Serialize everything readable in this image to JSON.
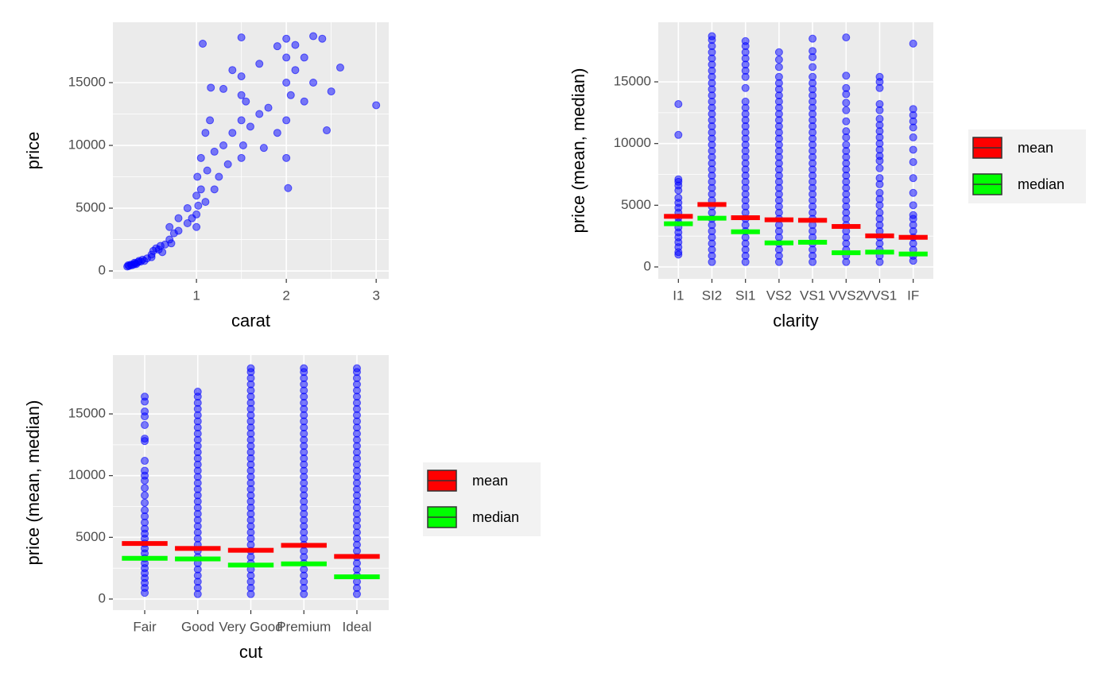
{
  "chart_data": [
    {
      "type": "scatter",
      "x_label": "carat",
      "y_label": "price",
      "color": "#0000ff",
      "x": [
        0.23,
        0.24,
        0.25,
        0.27,
        0.28,
        0.3,
        0.31,
        0.32,
        0.33,
        0.35,
        0.36,
        0.38,
        0.4,
        0.42,
        0.45,
        0.5,
        0.5,
        0.52,
        0.55,
        0.58,
        0.6,
        0.62,
        0.65,
        0.7,
        0.7,
        0.72,
        0.75,
        0.8,
        0.8,
        0.9,
        0.9,
        0.95,
        1.0,
        1.0,
        1.0,
        1.01,
        1.02,
        1.05,
        1.05,
        1.07,
        1.1,
        1.1,
        1.12,
        1.15,
        1.16,
        1.2,
        1.2,
        1.25,
        1.3,
        1.3,
        1.35,
        1.4,
        1.4,
        1.5,
        1.5,
        1.5,
        1.5,
        1.5,
        1.52,
        1.55,
        1.6,
        1.7,
        1.7,
        1.75,
        1.8,
        1.9,
        1.9,
        2.0,
        2.0,
        2.0,
        2.0,
        2.0,
        2.02,
        2.05,
        2.1,
        2.1,
        2.2,
        2.2,
        2.3,
        2.3,
        2.4,
        2.45,
        2.5,
        2.6,
        3.0
      ],
      "y": [
        350,
        450,
        400,
        500,
        450,
        500,
        650,
        600,
        550,
        700,
        800,
        750,
        900,
        800,
        1000,
        1300,
        1100,
        1600,
        1800,
        1700,
        2000,
        1500,
        2100,
        2500,
        3500,
        2200,
        3000,
        3200,
        4200,
        3800,
        5000,
        4200,
        4500,
        6000,
        3500,
        7500,
        5200,
        9000,
        6500,
        18100,
        5500,
        11000,
        8000,
        12000,
        14600,
        6500,
        9500,
        7500,
        10000,
        14500,
        8500,
        11000,
        16000,
        9000,
        12000,
        14000,
        15500,
        18600,
        10000,
        13500,
        11500,
        12500,
        16500,
        9800,
        13000,
        11000,
        17900,
        9000,
        12000,
        15000,
        17000,
        18500,
        6600,
        14000,
        16000,
        18000,
        13500,
        17000,
        15000,
        18700,
        18500,
        11200,
        14300,
        16200,
        13200
      ],
      "xlim": [
        0.07,
        3.14
      ],
      "xticks": [
        1,
        2,
        3
      ],
      "ylim": [
        -630,
        19810
      ],
      "yticks": [
        0,
        5000,
        10000,
        15000
      ]
    },
    {
      "type": "strip",
      "x_label": "clarity",
      "y_label": "price (mean, median)",
      "color": "#0000ff",
      "categories": [
        "I1",
        "SI2",
        "SI1",
        "VS2",
        "VS1",
        "VVS2",
        "VVS1",
        "IF"
      ],
      "points": [
        [
          1000,
          1200,
          1600,
          2000,
          2400,
          2800,
          3200,
          3600,
          4000,
          4400,
          4800,
          5200,
          5600,
          6200,
          6600,
          6900,
          7100,
          10700,
          13200
        ],
        [
          400,
          900,
          1400,
          1900,
          2400,
          2900,
          3400,
          3900,
          4400,
          4900,
          5400,
          5900,
          6400,
          6900,
          7400,
          7900,
          8400,
          8900,
          9400,
          9900,
          10400,
          10900,
          11400,
          11900,
          12400,
          12900,
          13400,
          13900,
          14400,
          14900,
          15400,
          15900,
          16400,
          16900,
          17400,
          17900,
          18400,
          18700
        ],
        [
          400,
          900,
          1400,
          1900,
          2400,
          2900,
          3400,
          3900,
          4400,
          4900,
          5400,
          5900,
          6400,
          6900,
          7400,
          7900,
          8400,
          8900,
          9400,
          9900,
          10400,
          10900,
          11400,
          11900,
          12400,
          12900,
          13400,
          14500,
          15400,
          15900,
          16400,
          16900,
          17400,
          17900,
          18300
        ],
        [
          400,
          900,
          1400,
          1900,
          2400,
          2900,
          3400,
          3900,
          4400,
          4900,
          5400,
          5900,
          6400,
          6900,
          7400,
          7900,
          8400,
          8900,
          9400,
          9900,
          10400,
          10900,
          11400,
          11900,
          12400,
          12900,
          13400,
          13900,
          14400,
          14900,
          15400,
          16200,
          16800,
          17400
        ],
        [
          400,
          900,
          1400,
          1900,
          2400,
          2900,
          3400,
          3900,
          4400,
          4900,
          5400,
          5900,
          6400,
          6900,
          7400,
          7900,
          8400,
          8900,
          9400,
          9900,
          10400,
          10900,
          11400,
          11900,
          12400,
          12900,
          13400,
          13900,
          14400,
          14900,
          15400,
          16200,
          17000,
          17500,
          18500
        ],
        [
          400,
          900,
          1400,
          1900,
          2400,
          2900,
          3400,
          3900,
          4400,
          4900,
          5400,
          5900,
          6400,
          6900,
          7400,
          7900,
          8400,
          8900,
          9400,
          9900,
          10500,
          11000,
          11800,
          12700,
          13300,
          14000,
          14500,
          15500,
          18600
        ],
        [
          400,
          900,
          1400,
          1900,
          2400,
          2900,
          3400,
          3900,
          4400,
          5000,
          5500,
          6000,
          6700,
          7200,
          8000,
          8600,
          9000,
          9500,
          10000,
          10500,
          11000,
          11500,
          12000,
          12700,
          13200,
          14500,
          15000,
          15400
        ],
        [
          500,
          900,
          1400,
          1900,
          2400,
          2900,
          3400,
          3900,
          4200,
          5000,
          6000,
          7200,
          8500,
          9500,
          10500,
          11300,
          11800,
          12300,
          12800,
          18100
        ]
      ],
      "series": [
        {
          "name": "mean",
          "color": "#ff0000",
          "values": [
            4100,
            5060,
            3990,
            3820,
            3780,
            3280,
            2520,
            2400
          ]
        },
        {
          "name": "median",
          "color": "#00ff00",
          "values": [
            3500,
            3950,
            2850,
            1950,
            2000,
            1150,
            1200,
            1050
          ]
        }
      ],
      "ylim": [
        -966,
        19830
      ],
      "yticks": [
        0,
        5000,
        10000,
        15000
      ],
      "legend": "right"
    },
    {
      "type": "strip",
      "x_label": "cut",
      "y_label": "price (mean, median)",
      "color": "#0000ff",
      "categories": [
        "Fair",
        "Good",
        "Very Good",
        "Premium",
        "Ideal"
      ],
      "points": [
        [
          500,
          900,
          1300,
          1700,
          2100,
          2500,
          2900,
          3300,
          3700,
          4100,
          4500,
          4900,
          5300,
          5700,
          6200,
          6700,
          7200,
          7800,
          8400,
          9000,
          9600,
          10000,
          10400,
          11200,
          12800,
          13000,
          14100,
          14800,
          15200,
          16000,
          16400
        ],
        [
          400,
          900,
          1400,
          1900,
          2400,
          2900,
          3400,
          3900,
          4400,
          4900,
          5400,
          5900,
          6400,
          6900,
          7400,
          7900,
          8400,
          8900,
          9400,
          9900,
          10400,
          10900,
          11400,
          11900,
          12400,
          12900,
          13400,
          13900,
          14400,
          14900,
          15400,
          15900,
          16400,
          16800
        ],
        [
          400,
          900,
          1400,
          1900,
          2400,
          2900,
          3400,
          3900,
          4400,
          4900,
          5400,
          5900,
          6400,
          6900,
          7400,
          7900,
          8400,
          8900,
          9400,
          9900,
          10400,
          10900,
          11400,
          11900,
          12400,
          12900,
          13400,
          13900,
          14400,
          14900,
          15400,
          15900,
          16400,
          16900,
          17400,
          17900,
          18400,
          18700
        ],
        [
          400,
          900,
          1400,
          1900,
          2400,
          2900,
          3400,
          3900,
          4400,
          4900,
          5400,
          5900,
          6400,
          6900,
          7400,
          7900,
          8400,
          8900,
          9400,
          9900,
          10400,
          10900,
          11400,
          11900,
          12400,
          12900,
          13400,
          13900,
          14400,
          14900,
          15400,
          15900,
          16400,
          16900,
          17400,
          17900,
          18400,
          18700
        ],
        [
          400,
          900,
          1400,
          1900,
          2400,
          2900,
          3400,
          3900,
          4400,
          4900,
          5400,
          5900,
          6400,
          6900,
          7400,
          7900,
          8400,
          8900,
          9400,
          9900,
          10400,
          10900,
          11400,
          11900,
          12400,
          12900,
          13400,
          13900,
          14400,
          14900,
          15400,
          15900,
          16400,
          16900,
          17400,
          17900,
          18400,
          18700
        ]
      ],
      "series": [
        {
          "name": "mean",
          "color": "#ff0000",
          "values": [
            4500,
            4100,
            3950,
            4350,
            3450
          ]
        },
        {
          "name": "median",
          "color": "#00ff00",
          "values": [
            3300,
            3250,
            2750,
            2850,
            1800
          ]
        }
      ],
      "ylim": [
        -901,
        19765
      ],
      "yticks": [
        0,
        5000,
        10000,
        15000
      ],
      "legend": "right"
    }
  ]
}
